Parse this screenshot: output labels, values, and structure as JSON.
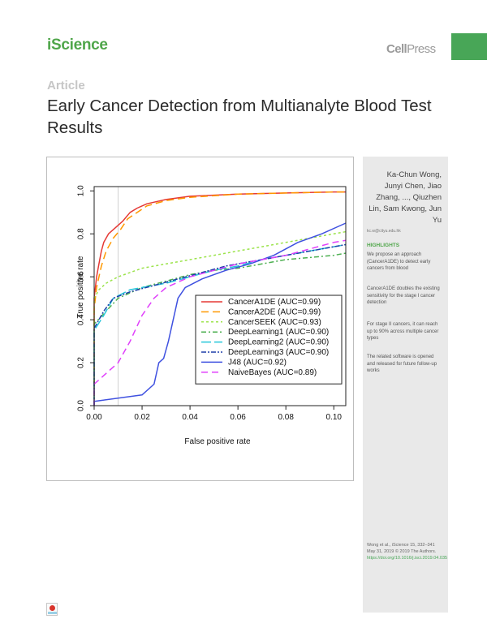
{
  "header": {
    "journal": "iScience",
    "publisher_bold": "Cell",
    "publisher_light": "Press"
  },
  "article": {
    "label": "Article",
    "title": "Early Cancer Detection from Multianalyte Blood Test Results"
  },
  "sidebar": {
    "authors": "Ka-Chun Wong, Junyi Chen, Jiao Zhang, ..., Qiuzhen Lin, Sam Kwong, Jun Yu",
    "email": "kc.w@cityu.edu.hk",
    "highlights_title": "HIGHLIGHTS",
    "highlights": [
      "We propose an approach (CancerA1DE) to detect early cancers from blood",
      "CancerA1DE doubles the existing sensitivity for the stage I cancer detection",
      "For stage II cancers, it can reach up to 90% across multiple cancer types",
      "The related software is opened and released for future follow-up works"
    ],
    "citation_1": "Wong et al., iScience 15, 332–341",
    "citation_2": "May 31, 2019 © 2019 The Authors.",
    "citation_link": "https://doi.org/10.1016/j.isci.2019.04.035"
  },
  "colors": {
    "brand_green": "#4fa64a",
    "sidebar_gray": "#e9e9e9"
  },
  "chart_data": {
    "type": "line",
    "title": "",
    "xlabel": "False positive rate",
    "ylabel": "True positive rate",
    "xlim": [
      0,
      0.105
    ],
    "ylim": [
      0,
      1.02
    ],
    "x_ticks": [
      0.0,
      0.02,
      0.04,
      0.06,
      0.08,
      0.1
    ],
    "x_tick_labels": [
      "0.00",
      "0.02",
      "0.04",
      "0.06",
      "0.08",
      "0.10"
    ],
    "y_ticks": [
      0.0,
      0.2,
      0.4,
      0.6,
      0.8,
      1.0
    ],
    "y_tick_labels": [
      "0.0",
      "0.2",
      "0.4",
      "0.6",
      "0.8",
      "1.0"
    ],
    "reference_line_x": 0.01,
    "grid": false,
    "legend_position": "center-right",
    "series": [
      {
        "name": "CancerA1DE (AUC=0.99)",
        "color": "#e53935",
        "dash": "solid",
        "points": [
          [
            0,
            0
          ],
          [
            0,
            0.5
          ],
          [
            0.001,
            0.6
          ],
          [
            0.002,
            0.66
          ],
          [
            0.003,
            0.72
          ],
          [
            0.004,
            0.76
          ],
          [
            0.006,
            0.8
          ],
          [
            0.009,
            0.83
          ],
          [
            0.012,
            0.86
          ],
          [
            0.015,
            0.9
          ],
          [
            0.018,
            0.92
          ],
          [
            0.022,
            0.94
          ],
          [
            0.03,
            0.96
          ],
          [
            0.04,
            0.975
          ],
          [
            0.06,
            0.985
          ],
          [
            0.08,
            0.99
          ],
          [
            0.1,
            0.995
          ],
          [
            0.105,
            0.995
          ]
        ]
      },
      {
        "name": "CancerA2DE (AUC=0.99)",
        "color": "#ff9800",
        "dash": "9,5",
        "points": [
          [
            0,
            0
          ],
          [
            0,
            0.45
          ],
          [
            0.001,
            0.55
          ],
          [
            0.003,
            0.65
          ],
          [
            0.005,
            0.72
          ],
          [
            0.008,
            0.78
          ],
          [
            0.011,
            0.82
          ],
          [
            0.014,
            0.87
          ],
          [
            0.018,
            0.9
          ],
          [
            0.022,
            0.93
          ],
          [
            0.03,
            0.955
          ],
          [
            0.04,
            0.97
          ],
          [
            0.06,
            0.985
          ],
          [
            0.08,
            0.99
          ],
          [
            0.1,
            0.995
          ],
          [
            0.105,
            0.995
          ]
        ]
      },
      {
        "name": "CancerSEEK (AUC=0.93)",
        "color": "#9be34a",
        "dash": "3,3",
        "points": [
          [
            0,
            0
          ],
          [
            0,
            0.5
          ],
          [
            0.002,
            0.54
          ],
          [
            0.005,
            0.57
          ],
          [
            0.01,
            0.6
          ],
          [
            0.015,
            0.62
          ],
          [
            0.02,
            0.64
          ],
          [
            0.03,
            0.66
          ],
          [
            0.04,
            0.68
          ],
          [
            0.05,
            0.7
          ],
          [
            0.06,
            0.72
          ],
          [
            0.07,
            0.74
          ],
          [
            0.08,
            0.76
          ],
          [
            0.09,
            0.78
          ],
          [
            0.1,
            0.8
          ],
          [
            0.105,
            0.81
          ]
        ]
      },
      {
        "name": "DeepLearning1 (AUC=0.90)",
        "color": "#4caf50",
        "dash": "6,3,2,3",
        "points": [
          [
            0,
            0
          ],
          [
            0,
            0.38
          ],
          [
            0.005,
            0.44
          ],
          [
            0.01,
            0.5
          ],
          [
            0.02,
            0.55
          ],
          [
            0.03,
            0.58
          ],
          [
            0.04,
            0.61
          ],
          [
            0.05,
            0.63
          ],
          [
            0.06,
            0.64
          ],
          [
            0.07,
            0.66
          ],
          [
            0.08,
            0.68
          ],
          [
            0.09,
            0.69
          ],
          [
            0.1,
            0.7
          ],
          [
            0.105,
            0.71
          ]
        ]
      },
      {
        "name": "DeepLearning2 (AUC=0.90)",
        "color": "#26c6da",
        "dash": "12,4",
        "points": [
          [
            0,
            0
          ],
          [
            0,
            0.35
          ],
          [
            0.004,
            0.42
          ],
          [
            0.008,
            0.5
          ],
          [
            0.015,
            0.54
          ],
          [
            0.02,
            0.55
          ],
          [
            0.03,
            0.57
          ],
          [
            0.04,
            0.6
          ],
          [
            0.05,
            0.63
          ],
          [
            0.06,
            0.65
          ],
          [
            0.07,
            0.68
          ],
          [
            0.08,
            0.7
          ],
          [
            0.09,
            0.72
          ],
          [
            0.1,
            0.74
          ],
          [
            0.105,
            0.75
          ]
        ]
      },
      {
        "name": "DeepLearning3 (AUC=0.90)",
        "color": "#1e3fa8",
        "dash": "6,2,2,2",
        "points": [
          [
            0,
            0
          ],
          [
            0,
            0.36
          ],
          [
            0.004,
            0.44
          ],
          [
            0.008,
            0.5
          ],
          [
            0.015,
            0.53
          ],
          [
            0.025,
            0.56
          ],
          [
            0.035,
            0.59
          ],
          [
            0.045,
            0.62
          ],
          [
            0.055,
            0.65
          ],
          [
            0.065,
            0.67
          ],
          [
            0.075,
            0.69
          ],
          [
            0.085,
            0.71
          ],
          [
            0.095,
            0.73
          ],
          [
            0.105,
            0.75
          ]
        ]
      },
      {
        "name": "J48 (AUC=0.92)",
        "color": "#3f51e0",
        "dash": "solid",
        "points": [
          [
            0,
            0
          ],
          [
            0,
            0.02
          ],
          [
            0.02,
            0.05
          ],
          [
            0.025,
            0.1
          ],
          [
            0.027,
            0.2
          ],
          [
            0.029,
            0.22
          ],
          [
            0.031,
            0.3
          ],
          [
            0.033,
            0.4
          ],
          [
            0.035,
            0.5
          ],
          [
            0.038,
            0.55
          ],
          [
            0.045,
            0.59
          ],
          [
            0.055,
            0.63
          ],
          [
            0.065,
            0.66
          ],
          [
            0.075,
            0.7
          ],
          [
            0.085,
            0.76
          ],
          [
            0.095,
            0.8
          ],
          [
            0.105,
            0.85
          ]
        ]
      },
      {
        "name": "NaiveBayes (AUC=0.89)",
        "color": "#e040fb",
        "dash": "8,5",
        "points": [
          [
            0,
            0
          ],
          [
            0,
            0.1
          ],
          [
            0.01,
            0.2
          ],
          [
            0.015,
            0.3
          ],
          [
            0.02,
            0.42
          ],
          [
            0.025,
            0.5
          ],
          [
            0.03,
            0.55
          ],
          [
            0.04,
            0.6
          ],
          [
            0.05,
            0.63
          ],
          [
            0.06,
            0.66
          ],
          [
            0.07,
            0.68
          ],
          [
            0.08,
            0.7
          ],
          [
            0.09,
            0.73
          ],
          [
            0.1,
            0.76
          ],
          [
            0.105,
            0.77
          ]
        ]
      }
    ]
  }
}
